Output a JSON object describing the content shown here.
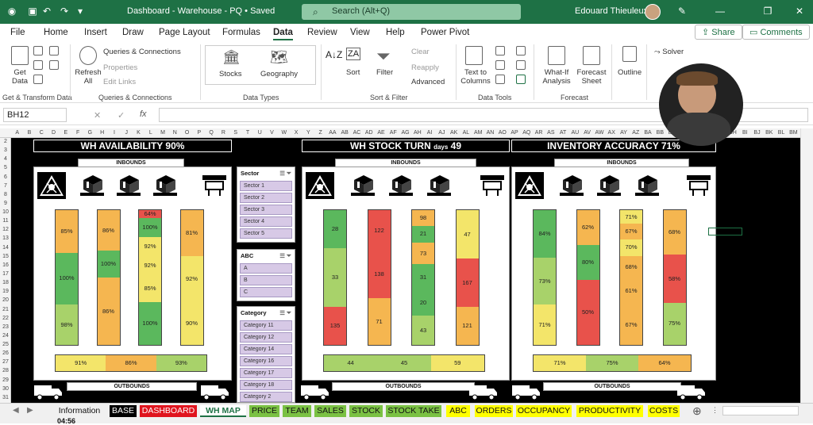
{
  "titlebar": {
    "title": "Dashboard - Warehouse - PQ • Saved",
    "search": "Search (Alt+Q)",
    "user": "Edouard Thieuleux"
  },
  "menu": [
    "File",
    "Home",
    "Insert",
    "Draw",
    "Page Layout",
    "Formulas",
    "Data",
    "Review",
    "View",
    "Help",
    "Power Pivot"
  ],
  "share": "Share",
  "comments": "Comments",
  "ribbon": {
    "get_data": "Get\nData",
    "refresh_all": "Refresh\nAll",
    "queries_connections": "Queries & Connections",
    "properties": "Properties",
    "edit_links": "Edit Links",
    "stocks": "Stocks",
    "geography": "Geography",
    "sort": "Sort",
    "filter": "Filter",
    "clear": "Clear",
    "reapply": "Reapply",
    "advanced": "Advanced",
    "text_to_columns": "Text to\nColumns",
    "what_if": "What-If\nAnalysis",
    "forecast_sheet": "Forecast\nSheet",
    "outline": "Outline",
    "solver": "Solver",
    "groups": [
      "Get & Transform Data",
      "Queries & Connections",
      "Data Types",
      "Sort & Filter",
      "Data Tools",
      "Forecast"
    ]
  },
  "formula": {
    "namebox": "BH12",
    "content": ""
  },
  "columns": "A B C D E F G H I J K L M N O P Q R S T U V W X Y Z AA AB AC AD AE AF AG AH AI AJ AK AL AM AN AO AP AQ AR AS AT AU AV AW AX AY AZ BA BB BC BD BE BF BG BH BI BJ BK BL BM",
  "rows": [
    "2",
    "3",
    "4",
    "5",
    "6",
    "7",
    "8",
    "9",
    "10",
    "11",
    "12",
    "13",
    "14",
    "15",
    "16",
    "17",
    "18",
    "19",
    "20",
    "21",
    "22",
    "23",
    "24",
    "25",
    "26",
    "27",
    "28",
    "29",
    "30",
    "31"
  ],
  "kpis": {
    "availability": "WH AVAILABILITY 90%",
    "stock_turn": "WH STOCK TURN",
    "stock_turn_unit": "days",
    "stock_turn_value": "49",
    "accuracy": "INVENTORY ACCURACY 71%"
  },
  "labels": {
    "inbounds": "INBOUNDS",
    "outbounds": "OUTBOUNDS"
  },
  "colors": {
    "green": "#5bb85d",
    "lightgreen": "#a8d26a",
    "yellow": "#f3e56a",
    "orange": "#f5b650",
    "red": "#e8524b"
  },
  "panel1": {
    "bars": [
      [
        {
          "v": "85%",
          "c": "orange",
          "h": 32
        },
        {
          "v": "100%",
          "c": "green",
          "h": 38
        },
        {
          "v": "98%",
          "c": "lightgreen",
          "h": 30
        }
      ],
      [
        {
          "v": "86%",
          "c": "orange",
          "h": 30
        },
        {
          "v": "100%",
          "c": "green",
          "h": 20
        },
        {
          "v": "86%",
          "c": "orange",
          "h": 50
        }
      ],
      [
        {
          "v": "64%",
          "c": "red",
          "h": 6
        },
        {
          "v": "100%",
          "c": "green",
          "h": 14
        },
        {
          "v": "92%",
          "c": "yellow",
          "h": 14
        },
        {
          "v": "92%",
          "c": "yellow",
          "h": 14
        },
        {
          "v": "85%",
          "c": "yellow",
          "h": 20
        },
        {
          "v": "100%",
          "c": "green",
          "h": 32
        }
      ],
      [
        {
          "v": "81%",
          "c": "orange",
          "h": 34
        },
        {
          "v": "92%",
          "c": "yellow",
          "h": 34
        },
        {
          "v": "90%",
          "c": "yellow",
          "h": 32
        }
      ]
    ],
    "bottom": [
      {
        "v": "91%",
        "c": "yellow"
      },
      {
        "v": "86%",
        "c": "orange"
      },
      {
        "v": "93%",
        "c": "lightgreen"
      }
    ]
  },
  "panel2": {
    "bars": [
      [
        {
          "v": "28",
          "c": "green",
          "h": 28
        },
        {
          "v": "33",
          "c": "lightgreen",
          "h": 44
        },
        {
          "v": "135",
          "c": "red",
          "h": 28
        }
      ],
      [
        {
          "v": "122",
          "c": "red",
          "h": 30
        },
        {
          "v": "138",
          "c": "red",
          "h": 35
        },
        {
          "v": "71",
          "c": "orange",
          "h": 35
        }
      ],
      [
        {
          "v": "98",
          "c": "orange",
          "h": 12
        },
        {
          "v": "21",
          "c": "green",
          "h": 12
        },
        {
          "v": "73",
          "c": "orange",
          "h": 16
        },
        {
          "v": "31",
          "c": "green",
          "h": 20
        },
        {
          "v": "20",
          "c": "green",
          "h": 18
        },
        {
          "v": "43",
          "c": "lightgreen",
          "h": 22
        }
      ],
      [
        {
          "v": "47",
          "c": "yellow",
          "h": 36
        },
        {
          "v": "167",
          "c": "red",
          "h": 36
        },
        {
          "v": "121",
          "c": "orange",
          "h": 28
        }
      ]
    ],
    "bottom": [
      {
        "v": "44",
        "c": "lightgreen"
      },
      {
        "v": "45",
        "c": "lightgreen"
      },
      {
        "v": "59",
        "c": "yellow"
      }
    ]
  },
  "panel3": {
    "bars": [
      [
        {
          "v": "84%",
          "c": "green",
          "h": 35
        },
        {
          "v": "73%",
          "c": "lightgreen",
          "h": 35
        },
        {
          "v": "71%",
          "c": "yellow",
          "h": 30
        }
      ],
      [
        {
          "v": "62%",
          "c": "orange",
          "h": 26
        },
        {
          "v": "80%",
          "c": "green",
          "h": 26
        },
        {
          "v": "50%",
          "c": "red",
          "h": 48
        }
      ],
      [
        {
          "v": "71%",
          "c": "yellow",
          "h": 10
        },
        {
          "v": "67%",
          "c": "orange",
          "h": 12
        },
        {
          "v": "70%",
          "c": "yellow",
          "h": 12
        },
        {
          "v": "68%",
          "c": "orange",
          "h": 16
        },
        {
          "v": "61%",
          "c": "orange",
          "h": 20
        },
        {
          "v": "67%",
          "c": "orange",
          "h": 30
        }
      ],
      [
        {
          "v": "68%",
          "c": "orange",
          "h": 33
        },
        {
          "v": "58%",
          "c": "red",
          "h": 36
        },
        {
          "v": "75%",
          "c": "lightgreen",
          "h": 31
        }
      ]
    ],
    "bottom": [
      {
        "v": "71%",
        "c": "yellow"
      },
      {
        "v": "75%",
        "c": "lightgreen"
      },
      {
        "v": "64%",
        "c": "orange"
      }
    ]
  },
  "slicers": {
    "sector": {
      "title": "Sector",
      "items": [
        "Sector 1",
        "Sector 2",
        "Sector 3",
        "Sector 4",
        "Sector 5"
      ]
    },
    "abc": {
      "title": "ABC",
      "items": [
        "A",
        "B",
        "C"
      ]
    },
    "category": {
      "title": "Category",
      "items": [
        "Category 11",
        "Category 12",
        "Category 14",
        "Category 16",
        "Category 17",
        "Category 18",
        "Category 2"
      ]
    }
  },
  "tabs": [
    {
      "name": "Information",
      "bg": "#f0f0f0",
      "fg": "#111"
    },
    {
      "name": "BASE",
      "bg": "#000000",
      "fg": "#ffffff"
    },
    {
      "name": "DASHBOARD",
      "bg": "#e0141e",
      "fg": "#ffffff"
    },
    {
      "name": "WH MAP",
      "bg": "#ffffff",
      "fg": "#1e7145"
    },
    {
      "name": "PRICE",
      "bg": "#7ac143",
      "fg": "#111"
    },
    {
      "name": "TEAM",
      "bg": "#7ac143",
      "fg": "#111"
    },
    {
      "name": "SALES",
      "bg": "#7ac143",
      "fg": "#111"
    },
    {
      "name": "STOCK",
      "bg": "#7ac143",
      "fg": "#111"
    },
    {
      "name": "STOCK TAKE",
      "bg": "#7ac143",
      "fg": "#111"
    },
    {
      "name": "ABC",
      "bg": "#ffff00",
      "fg": "#111"
    },
    {
      "name": "ORDERS",
      "bg": "#ffff00",
      "fg": "#111"
    },
    {
      "name": "OCCUPANCY",
      "bg": "#ffff00",
      "fg": "#111"
    },
    {
      "name": "PRODUCTIVITY",
      "bg": "#ffff00",
      "fg": "#111"
    },
    {
      "name": "COSTS",
      "bg": "#ffff00",
      "fg": "#111"
    }
  ],
  "status": {
    "time": "04:56"
  }
}
